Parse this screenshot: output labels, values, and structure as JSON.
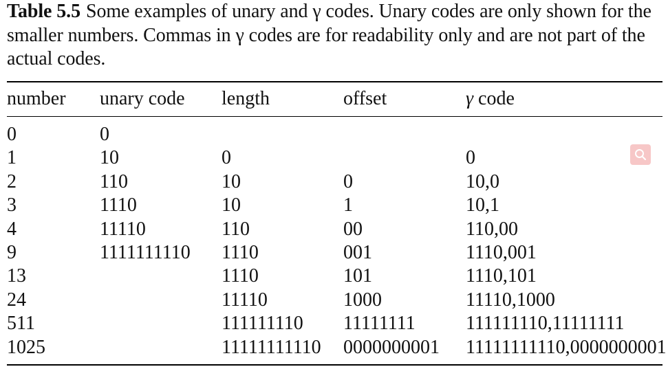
{
  "caption": {
    "label": "Table 5.5",
    "text": "Some examples of unary and γ codes. Unary codes are only shown for the smaller numbers. Commas in γ codes are for readability only and are not part of the actual codes."
  },
  "table": {
    "headers": {
      "number": "number",
      "unary": "unary code",
      "length": "length",
      "offset": "offset",
      "gamma_symbol": "γ",
      "gamma_text": "code"
    },
    "rows": [
      {
        "number": "0",
        "unary": "0",
        "length": "",
        "offset": "",
        "gamma": ""
      },
      {
        "number": "1",
        "unary": "10",
        "length": "0",
        "offset": "",
        "gamma": "0"
      },
      {
        "number": "2",
        "unary": "110",
        "length": "10",
        "offset": "0",
        "gamma": "10,0"
      },
      {
        "number": "3",
        "unary": "1110",
        "length": "10",
        "offset": "1",
        "gamma": "10,1"
      },
      {
        "number": "4",
        "unary": "11110",
        "length": "110",
        "offset": "00",
        "gamma": "110,00"
      },
      {
        "number": "9",
        "unary": "1111111110",
        "length": "1110",
        "offset": "001",
        "gamma": "1110,001"
      },
      {
        "number": "13",
        "unary": "",
        "length": "1110",
        "offset": "101",
        "gamma": "1110,101"
      },
      {
        "number": "24",
        "unary": "",
        "length": "11110",
        "offset": "1000",
        "gamma": "11110,1000"
      },
      {
        "number": "511",
        "unary": "",
        "length": "111111110",
        "offset": "11111111",
        "gamma": "111111110,11111111"
      },
      {
        "number": "1025",
        "unary": "",
        "length": "11111111110",
        "offset": "0000000001",
        "gamma": "11111111110,0000000001"
      }
    ]
  },
  "overlay": {
    "icon": "search-icon",
    "color": "#f7c7c7"
  }
}
